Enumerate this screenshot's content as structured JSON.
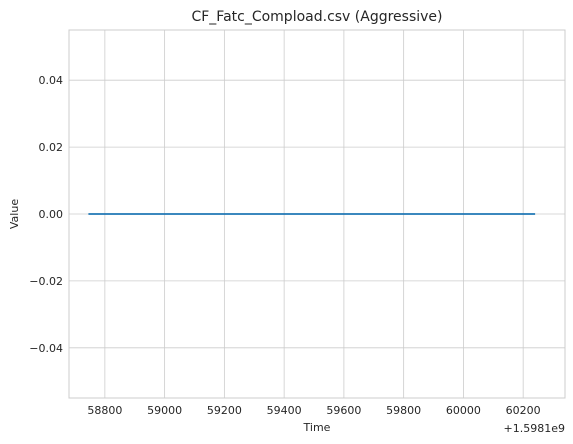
{
  "chart_data": {
    "type": "line",
    "title": "CF_Fatc_Compload.csv (Aggressive)",
    "xlabel": "Time",
    "ylabel": "Value",
    "offset_text": "+1.5981e9",
    "x_offset": 1598100000,
    "xlim": [
      58680,
      60340
    ],
    "ylim": [
      -0.055,
      0.055
    ],
    "x_ticks": [
      58800,
      59000,
      59200,
      59400,
      59600,
      59800,
      60000,
      60200
    ],
    "y_ticks": [
      -0.04,
      -0.02,
      0.0,
      0.02,
      0.04
    ],
    "y_tick_labels": [
      "−0.04",
      "−0.02",
      "0.00",
      "0.02",
      "0.04"
    ],
    "grid": true,
    "series": [
      {
        "color": "#1f77b4",
        "x": [
          58745,
          60240
        ],
        "y": [
          0,
          0
        ]
      }
    ]
  }
}
